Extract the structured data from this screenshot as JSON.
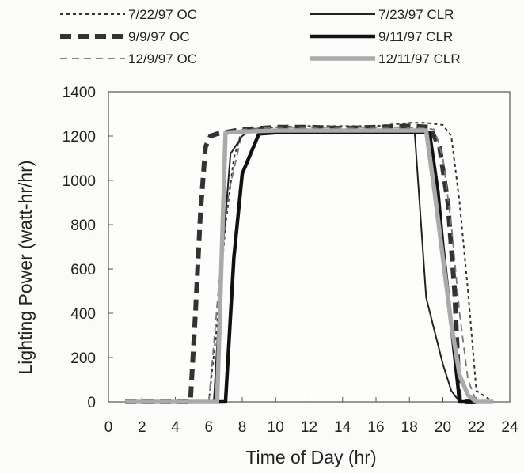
{
  "chart_data": {
    "type": "line",
    "xlabel": "Time of Day (hr)",
    "ylabel": "Lighting Power (watt-hr/hr)",
    "xlim": [
      0,
      24
    ],
    "ylim": [
      0,
      1400
    ],
    "xticks": [
      0,
      2,
      4,
      6,
      8,
      10,
      12,
      14,
      16,
      18,
      20,
      22,
      24
    ],
    "yticks": [
      0,
      200,
      400,
      600,
      800,
      1000,
      1200,
      1400
    ],
    "grid": false,
    "legend_position": "top, outside plot, two columns",
    "series": [
      {
        "name": "7/22/97 OC",
        "style": "dotted-thin",
        "color": "#333333",
        "x": [
          1,
          3,
          5,
          6,
          6.5,
          7,
          7.5,
          8,
          10,
          12,
          14,
          16,
          18,
          19,
          20,
          20.5,
          21,
          21.5,
          22,
          23
        ],
        "y": [
          0,
          0,
          0,
          0,
          350,
          800,
          1100,
          1230,
          1240,
          1245,
          1245,
          1245,
          1260,
          1260,
          1250,
          1200,
          900,
          500,
          50,
          0
        ]
      },
      {
        "name": "9/9/97 OC",
        "style": "dashed-thick",
        "color": "#333333",
        "x": [
          1,
          3,
          4.9,
          5.2,
          5.5,
          5.8,
          6.1,
          6.5,
          8,
          10,
          12,
          14,
          16,
          18,
          19.2,
          19.8,
          20.3,
          20.7,
          21,
          22
        ],
        "y": [
          0,
          0,
          0,
          400,
          850,
          1150,
          1200,
          1210,
          1230,
          1240,
          1240,
          1235,
          1240,
          1245,
          1240,
          1150,
          900,
          500,
          0,
          0
        ]
      },
      {
        "name": "12/9/97 OC",
        "style": "dashed-thin",
        "color": "#777777",
        "x": [
          1,
          3,
          6,
          6.4,
          6.8,
          7.2,
          7.8,
          8,
          10,
          12,
          14,
          16,
          18,
          19.5,
          20,
          20.5,
          21,
          21.5,
          22,
          23
        ],
        "y": [
          0,
          0,
          0,
          350,
          700,
          950,
          1150,
          1230,
          1240,
          1240,
          1240,
          1240,
          1240,
          1230,
          1100,
          800,
          400,
          100,
          0,
          0
        ]
      },
      {
        "name": "7/23/97 CLR",
        "style": "solid-thin",
        "color": "#222222",
        "x": [
          1,
          3,
          5,
          6.3,
          6.8,
          7.3,
          8,
          8.5,
          10,
          12,
          14,
          16,
          18,
          18.3,
          19,
          19.5,
          20,
          20.5,
          21,
          22
        ],
        "y": [
          0,
          0,
          0,
          0,
          650,
          1120,
          1200,
          1230,
          1225,
          1220,
          1220,
          1220,
          1220,
          1230,
          470,
          320,
          170,
          50,
          0,
          0
        ]
      },
      {
        "name": "9/11/97 CLR",
        "style": "solid-thick",
        "color": "#111111",
        "x": [
          1,
          3,
          5,
          7,
          7.5,
          8,
          9,
          10,
          12,
          14,
          16,
          18,
          19.2,
          19.7,
          20,
          20.5,
          21,
          22
        ],
        "y": [
          0,
          0,
          0,
          0,
          650,
          1030,
          1210,
          1215,
          1215,
          1215,
          1215,
          1215,
          1215,
          950,
          700,
          350,
          0,
          0
        ]
      },
      {
        "name": "12/11/97 CLR",
        "style": "solid-wide-gray",
        "color": "#aaaaaa",
        "x": [
          1,
          3,
          4,
          6.5,
          7,
          8,
          10,
          12,
          14,
          16,
          18,
          19,
          19.5,
          20,
          20.5,
          21,
          21.5,
          22,
          23
        ],
        "y": [
          0,
          0,
          0,
          0,
          1215,
          1220,
          1225,
          1225,
          1225,
          1225,
          1225,
          1225,
          950,
          650,
          350,
          120,
          30,
          0,
          0
        ]
      }
    ]
  }
}
